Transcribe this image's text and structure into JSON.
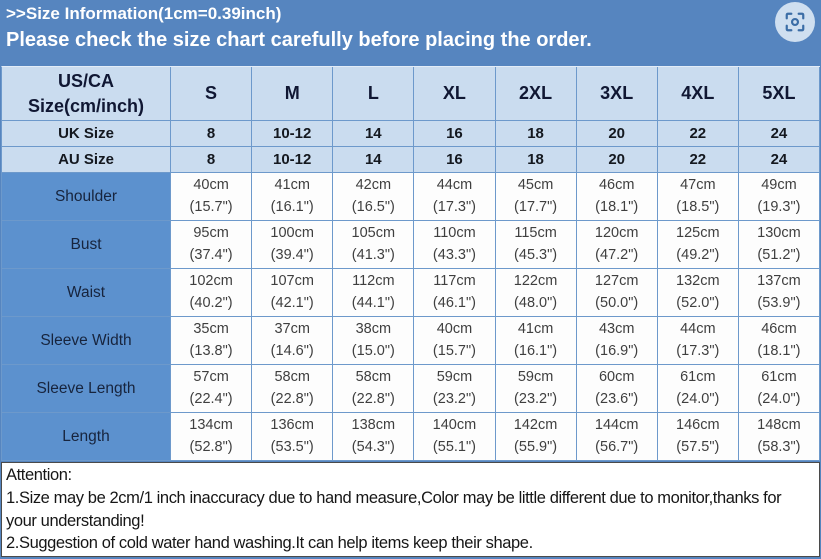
{
  "banner": {
    "title": ">>Size Information(1cm=0.39inch)",
    "subtitle": "Please check the size chart carefully before placing the order."
  },
  "lens_button": {
    "icon": "image-search-scan-icon"
  },
  "size_table": {
    "corner_header_line1": "US/CA",
    "corner_header_line2": "Size(cm/inch)",
    "size_headers": [
      "S",
      "M",
      "L",
      "XL",
      "2XL",
      "3XL",
      "4XL",
      "5XL"
    ],
    "size_rows": [
      {
        "label": "UK Size",
        "values": [
          "8",
          "10-12",
          "14",
          "16",
          "18",
          "20",
          "22",
          "24"
        ]
      },
      {
        "label": "AU Size",
        "values": [
          "8",
          "10-12",
          "14",
          "16",
          "18",
          "20",
          "22",
          "24"
        ]
      }
    ],
    "measurement_rows": [
      {
        "label": "Shoulder",
        "cm": [
          "40cm",
          "41cm",
          "42cm",
          "44cm",
          "45cm",
          "46cm",
          "47cm",
          "49cm"
        ],
        "inch": [
          "(15.7\")",
          "(16.1\")",
          "(16.5\")",
          "(17.3\")",
          "(17.7\")",
          "(18.1\")",
          "(18.5\")",
          "(19.3\")"
        ]
      },
      {
        "label": "Bust",
        "cm": [
          "95cm",
          "100cm",
          "105cm",
          "110cm",
          "115cm",
          "120cm",
          "125cm",
          "130cm"
        ],
        "inch": [
          "(37.4\")",
          "(39.4\")",
          "(41.3\")",
          "(43.3\")",
          "(45.3\")",
          "(47.2\")",
          "(49.2\")",
          "(51.2\")"
        ]
      },
      {
        "label": "Waist",
        "cm": [
          "102cm",
          "107cm",
          "112cm",
          "117cm",
          "122cm",
          "127cm",
          "132cm",
          "137cm"
        ],
        "inch": [
          "(40.2\")",
          "(42.1\")",
          "(44.1\")",
          "(46.1\")",
          "(48.0\")",
          "(50.0\")",
          "(52.0\")",
          "(53.9\")"
        ]
      },
      {
        "label": "Sleeve Width",
        "cm": [
          "35cm",
          "37cm",
          "38cm",
          "40cm",
          "41cm",
          "43cm",
          "44cm",
          "46cm"
        ],
        "inch": [
          "(13.8\")",
          "(14.6\")",
          "(15.0\")",
          "(15.7\")",
          "(16.1\")",
          "(16.9\")",
          "(17.3\")",
          "(18.1\")"
        ]
      },
      {
        "label": "Sleeve Length",
        "cm": [
          "57cm",
          "58cm",
          "58cm",
          "59cm",
          "59cm",
          "60cm",
          "61cm",
          "61cm"
        ],
        "inch": [
          "(22.4\")",
          "(22.8\")",
          "(22.8\")",
          "(23.2\")",
          "(23.2\")",
          "(23.6\")",
          "(24.0\")",
          "(24.0\")"
        ]
      },
      {
        "label": "Length",
        "cm": [
          "134cm",
          "136cm",
          "138cm",
          "140cm",
          "142cm",
          "144cm",
          "146cm",
          "148cm"
        ],
        "inch": [
          "(52.8\")",
          "(53.5\")",
          "(54.3\")",
          "(55.1\")",
          "(55.9\")",
          "(56.7\")",
          "(57.5\")",
          "(58.3\")"
        ]
      }
    ]
  },
  "attention": {
    "title": "Attention:",
    "notes": [
      "1.Size may be 2cm/1 inch inaccuracy due to hand measure,Color may be little different due to monitor,thanks for your understanding!",
      "2.Suggestion of cold water hand washing.It can help items keep their shape."
    ]
  },
  "colors": {
    "banner_blue": "#5685bf",
    "header_cell_blue": "#cadcef",
    "label_cell_blue": "#5c91ce",
    "cell_border_blue": "#6d99cb",
    "banner_text": "#ffffff",
    "data_text": "#3f3f3f"
  }
}
